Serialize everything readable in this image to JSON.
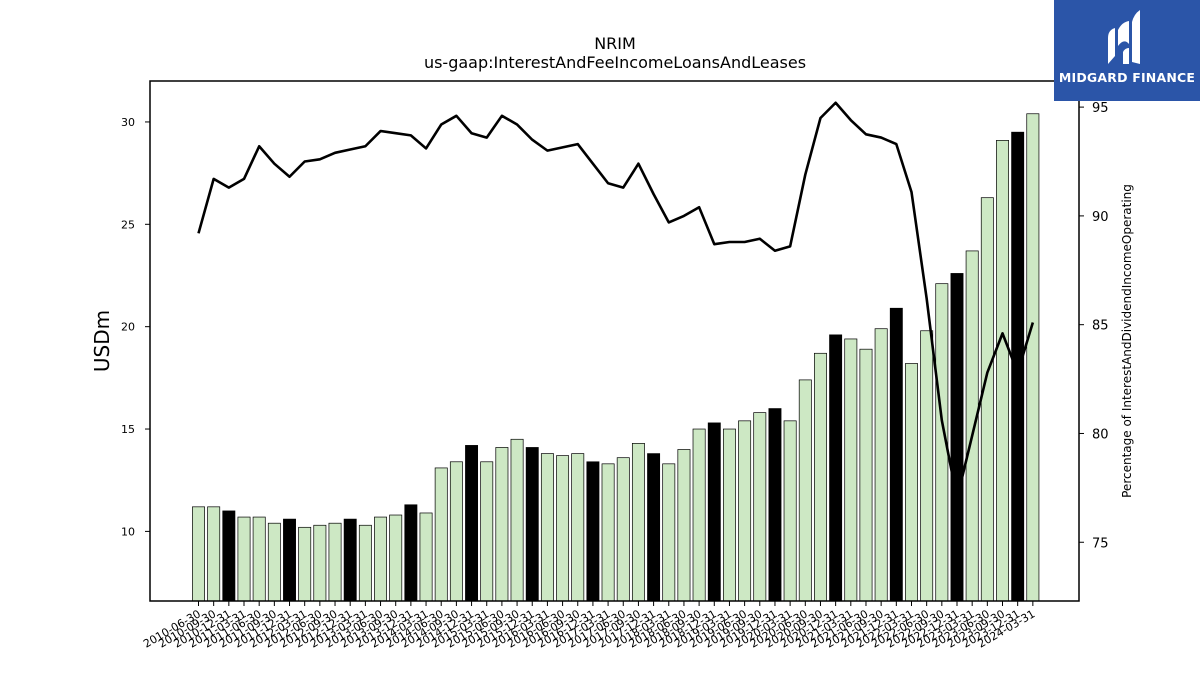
{
  "logo": {
    "text": "MIDGARD FINANCE"
  },
  "chart_data": {
    "type": "bar",
    "title": "NRIM",
    "subtitle": "us-gaap:InterestAndFeeIncomeLoansAndLeases",
    "ylabel": "USDm",
    "y2label": "Percentage of InterestAndDividendIncomeOperating",
    "ylim": [
      6.6,
      32.0
    ],
    "y2lim": [
      72.3,
      96.2
    ],
    "yticks": [
      10,
      15,
      20,
      25,
      30
    ],
    "y2ticks": [
      75,
      80,
      85,
      90,
      95
    ],
    "colors": {
      "bar_light": "#cde8c4",
      "bar_dark": "#000000",
      "line": "#000000"
    },
    "categories": [
      "2010-06-30",
      "2010-09-30",
      "2010-12-31",
      "2011-03-31",
      "2011-06-30",
      "2011-09-30",
      "2011-12-31",
      "2012-03-31",
      "2012-06-30",
      "2012-09-30",
      "2012-12-31",
      "2013-03-31",
      "2013-06-30",
      "2013-09-30",
      "2013-12-31",
      "2014-03-31",
      "2014-06-30",
      "2014-09-30",
      "2014-12-31",
      "2015-03-31",
      "2015-06-30",
      "2015-09-30",
      "2015-12-31",
      "2016-03-31",
      "2016-06-30",
      "2016-09-30",
      "2016-12-31",
      "2017-03-31",
      "2017-06-30",
      "2017-09-30",
      "2017-12-31",
      "2018-03-31",
      "2018-06-30",
      "2018-09-30",
      "2018-12-31",
      "2019-03-31",
      "2019-06-30",
      "2019-09-30",
      "2019-12-31",
      "2020-03-31",
      "2020-06-30",
      "2020-09-30",
      "2020-12-31",
      "2021-03-31",
      "2021-06-30",
      "2021-09-30",
      "2021-12-31",
      "2022-03-31",
      "2022-06-30",
      "2022-09-30",
      "2022-12-31",
      "2023-03-31",
      "2023-06-30",
      "2023-09-30",
      "2023-12-31",
      "2024-03-31"
    ],
    "series": [
      {
        "values": [
          11.2,
          11.2,
          11.0,
          10.7,
          10.7,
          10.4,
          10.6,
          10.2,
          10.3,
          10.4,
          10.6,
          10.3,
          10.7,
          10.8,
          11.3,
          10.9,
          13.1,
          13.4,
          14.2,
          13.4,
          14.1,
          14.5,
          14.1,
          13.8,
          13.7,
          13.8,
          13.4,
          13.3,
          13.6,
          14.3,
          13.8,
          13.3,
          14.0,
          15.0,
          15.3,
          15.0,
          15.4,
          15.8,
          16.0,
          15.4,
          17.4,
          18.7,
          19.6,
          19.4,
          18.9,
          19.9,
          20.9,
          18.2,
          19.8,
          22.1,
          22.6,
          23.7,
          26.3,
          29.1,
          29.5,
          30.4
        ],
        "dark": [
          false,
          false,
          true,
          false,
          false,
          false,
          true,
          false,
          false,
          false,
          true,
          false,
          false,
          false,
          true,
          false,
          false,
          false,
          true,
          false,
          false,
          false,
          true,
          false,
          false,
          false,
          true,
          false,
          false,
          false,
          true,
          false,
          false,
          false,
          true,
          false,
          false,
          false,
          true,
          false,
          false,
          false,
          true,
          false,
          false,
          false,
          true,
          false,
          false,
          false,
          true,
          false,
          false,
          false,
          true,
          false
        ]
      },
      {
        "axis": "right",
        "values": [
          89.2,
          91.7,
          91.3,
          91.7,
          93.2,
          92.4,
          91.8,
          92.5,
          92.6,
          92.9,
          93.05,
          93.2,
          93.9,
          93.8,
          93.7,
          93.1,
          94.2,
          94.6,
          93.8,
          93.6,
          94.6,
          94.2,
          93.5,
          93.0,
          93.15,
          93.3,
          92.4,
          91.5,
          91.3,
          92.4,
          91.0,
          89.7,
          90.0,
          90.4,
          88.7,
          88.8,
          88.8,
          88.95,
          88.4,
          88.6,
          91.9,
          94.5,
          95.2,
          94.4,
          93.75,
          93.6,
          93.3,
          91.1,
          86.2,
          80.6,
          77.0,
          79.9,
          82.8,
          84.6,
          82.8,
          85.1
        ]
      }
    ]
  }
}
